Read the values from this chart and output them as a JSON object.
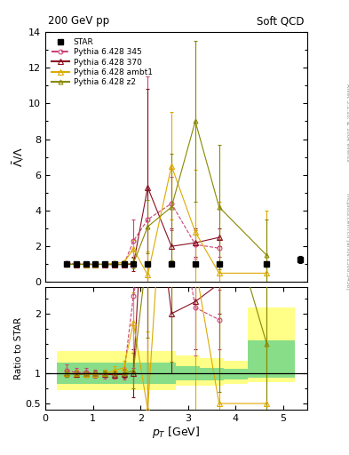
{
  "title_left": "200 GeV pp",
  "title_right": "Soft QCD",
  "ylabel_main": "$\\bar{\\Lambda}/\\Lambda$",
  "ylabel_ratio": "Ratio to STAR",
  "xlabel": "$p_T$ [GeV]",
  "right_label_top": "Rivet 3.1.10, ≥ 100k events",
  "right_label_bot": "mcplots.cern.ch [arXiv:1306.3436]",
  "ylim_main": [
    0,
    14
  ],
  "ylim_ratio": [
    0.4,
    2.45
  ],
  "xlim": [
    0,
    5.5
  ],
  "star_x": [
    0.45,
    0.65,
    0.85,
    1.05,
    1.25,
    1.45,
    1.65,
    1.85,
    2.15,
    2.65,
    3.15,
    3.65,
    4.65,
    5.35
  ],
  "star_y": [
    1.0,
    1.0,
    1.0,
    1.0,
    1.0,
    1.0,
    1.0,
    1.0,
    1.0,
    1.0,
    1.0,
    1.0,
    1.0,
    1.25
  ],
  "star_yerr": [
    0.05,
    0.05,
    0.04,
    0.04,
    0.04,
    0.04,
    0.04,
    0.05,
    0.06,
    0.08,
    0.1,
    0.12,
    0.15,
    0.2
  ],
  "p345_x": [
    0.45,
    0.65,
    0.85,
    1.05,
    1.25,
    1.45,
    1.65,
    1.85,
    2.15,
    2.65,
    3.15,
    3.65
  ],
  "p345_y": [
    1.05,
    1.02,
    1.02,
    1.0,
    0.99,
    0.98,
    0.99,
    2.3,
    3.5,
    4.4,
    2.1,
    1.9
  ],
  "p345_yerr": [
    0.08,
    0.07,
    0.07,
    0.06,
    0.06,
    0.06,
    0.08,
    1.2,
    8.0,
    1.5,
    0.8,
    0.5
  ],
  "p370_x": [
    0.45,
    0.65,
    0.85,
    1.05,
    1.25,
    1.45,
    1.65,
    1.85,
    2.15,
    2.65,
    3.15,
    3.65
  ],
  "p370_y": [
    1.0,
    0.99,
    0.99,
    0.99,
    0.99,
    0.98,
    0.99,
    1.0,
    5.3,
    2.0,
    2.2,
    2.5
  ],
  "p370_yerr": [
    0.04,
    0.04,
    0.04,
    0.04,
    0.04,
    0.04,
    0.05,
    0.4,
    5.5,
    1.0,
    0.8,
    0.5
  ],
  "pambt1_x": [
    0.45,
    0.65,
    0.85,
    1.05,
    1.25,
    1.45,
    1.65,
    1.85,
    2.15,
    2.65,
    3.15,
    3.65,
    4.65
  ],
  "pambt1_y": [
    1.0,
    1.0,
    0.99,
    0.99,
    1.0,
    1.05,
    1.1,
    1.85,
    0.4,
    6.5,
    2.8,
    0.5,
    0.5
  ],
  "pambt1_yerr": [
    0.05,
    0.05,
    0.04,
    0.04,
    0.05,
    0.06,
    0.1,
    0.5,
    1.3,
    3.0,
    3.5,
    4.0,
    3.5
  ],
  "pz2_x": [
    0.45,
    0.65,
    0.85,
    1.05,
    1.25,
    1.45,
    1.65,
    1.85,
    2.15,
    2.65,
    3.15,
    3.65,
    4.65
  ],
  "pz2_y": [
    1.0,
    1.0,
    1.0,
    1.0,
    1.0,
    1.0,
    1.0,
    1.05,
    3.1,
    4.2,
    9.0,
    4.2,
    1.5
  ],
  "pz2_yerr": [
    0.04,
    0.04,
    0.04,
    0.04,
    0.04,
    0.04,
    0.05,
    0.3,
    1.5,
    3.0,
    4.5,
    3.5,
    2.0
  ],
  "color_345": "#cc4477",
  "color_370": "#881122",
  "color_ambt1": "#ddaa00",
  "color_z2": "#888800",
  "band_edges": [
    0.25,
    0.75,
    1.25,
    1.75,
    2.25,
    2.75,
    3.25,
    3.75,
    4.25,
    5.25
  ],
  "band_yellow_lo": [
    0.72,
    0.72,
    0.72,
    0.72,
    0.72,
    0.8,
    0.8,
    0.82,
    0.85,
    0.87
  ],
  "band_yellow_hi": [
    1.38,
    1.38,
    1.38,
    1.38,
    1.38,
    1.3,
    1.25,
    1.22,
    2.1,
    2.1
  ],
  "band_green_lo": [
    0.82,
    0.82,
    0.82,
    0.82,
    0.82,
    0.88,
    0.88,
    0.9,
    0.93,
    0.95
  ],
  "band_green_hi": [
    1.18,
    1.18,
    1.18,
    1.18,
    1.18,
    1.12,
    1.1,
    1.08,
    1.55,
    1.55
  ],
  "ratio_p345_y": [
    1.05,
    1.02,
    1.02,
    1.0,
    0.99,
    0.98,
    0.99,
    2.3,
    3.5,
    4.4,
    2.1,
    1.9
  ],
  "ratio_p345_yerr": [
    0.1,
    0.08,
    0.08,
    0.07,
    0.07,
    0.07,
    0.09,
    1.2,
    8.0,
    1.5,
    0.8,
    0.5
  ],
  "ratio_p370_y": [
    1.0,
    0.99,
    0.99,
    0.99,
    0.99,
    0.98,
    0.99,
    1.0,
    5.3,
    2.0,
    2.2,
    2.5
  ],
  "ratio_p370_yerr": [
    0.05,
    0.05,
    0.05,
    0.05,
    0.05,
    0.05,
    0.06,
    0.4,
    5.5,
    1.0,
    0.8,
    0.5
  ],
  "ratio_pambt1_y": [
    1.0,
    1.0,
    0.99,
    0.99,
    1.0,
    1.05,
    1.1,
    1.85,
    0.4,
    6.5,
    2.8,
    0.5,
    0.5
  ],
  "ratio_pambt1_yerr": [
    0.06,
    0.06,
    0.05,
    0.05,
    0.06,
    0.07,
    0.11,
    0.5,
    1.3,
    3.0,
    3.5,
    4.0,
    3.5
  ],
  "ratio_pz2_y": [
    1.0,
    1.0,
    1.0,
    1.0,
    1.0,
    1.0,
    1.0,
    1.05,
    3.1,
    4.2,
    9.0,
    4.2,
    1.5
  ],
  "ratio_pz2_yerr": [
    0.05,
    0.05,
    0.05,
    0.05,
    0.05,
    0.05,
    0.06,
    0.3,
    1.5,
    3.0,
    4.5,
    3.5,
    2.0
  ]
}
